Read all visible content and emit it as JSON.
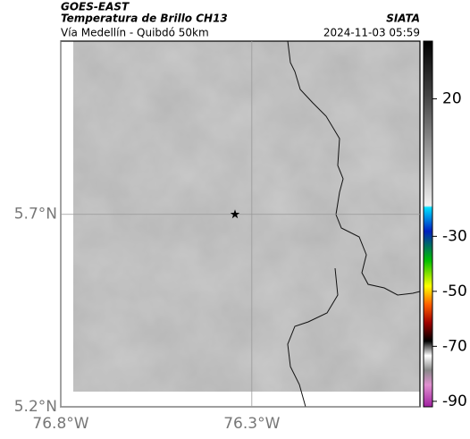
{
  "header": {
    "satellite": "GOES-EAST",
    "title": "Temperatura de Brillo CH13",
    "source": "SIATA",
    "route": "Vía Medellín - Quibdó 50km",
    "datetime": "2024-11-03 05:59"
  },
  "map": {
    "xlim": [
      -76.8,
      -75.86
    ],
    "ylim": [
      5.2,
      6.15
    ],
    "xticks": [
      {
        "value": -76.8,
        "label": "76.8°W"
      },
      {
        "value": -76.3,
        "label": "76.3°W"
      }
    ],
    "yticks": [
      {
        "value": 5.2,
        "label": "5.2°N"
      },
      {
        "value": 5.7,
        "label": "5.7°N"
      }
    ],
    "marker": {
      "lon": -76.344,
      "lat": 5.7
    }
  },
  "colorbar": {
    "lim": [
      -92,
      41
    ],
    "ticks": [
      20,
      -30,
      -50,
      -70,
      -90
    ]
  }
}
